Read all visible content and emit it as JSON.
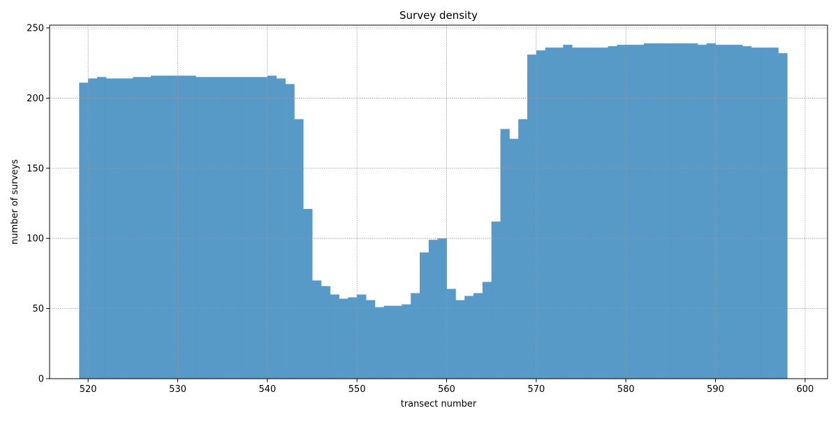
{
  "chart_data": {
    "type": "bar",
    "title": "Survey density",
    "xlabel": "transect number",
    "ylabel": "number of surveys",
    "xlim": [
      515.7,
      602.5
    ],
    "ylim": [
      0,
      252
    ],
    "xticks": [
      520,
      530,
      540,
      550,
      560,
      570,
      580,
      590,
      600
    ],
    "yticks": [
      0,
      50,
      100,
      150,
      200,
      250
    ],
    "grid": true,
    "bar_color": "#5799c7",
    "grid_color": "#999999",
    "bin_width": 1,
    "x": [
      519.5,
      520.5,
      521.5,
      522.5,
      523.5,
      524.5,
      525.5,
      526.5,
      527.5,
      528.5,
      529.5,
      530.5,
      531.5,
      532.5,
      533.5,
      534.5,
      535.5,
      536.5,
      537.5,
      538.5,
      539.5,
      540.5,
      541.5,
      542.5,
      543.5,
      544.5,
      545.5,
      546.5,
      547.5,
      548.5,
      549.5,
      550.5,
      551.5,
      552.5,
      553.5,
      554.5,
      555.5,
      556.5,
      557.5,
      558.5,
      559.5,
      560.5,
      561.5,
      562.5,
      563.5,
      564.5,
      565.5,
      566.5,
      567.5,
      568.5,
      569.5,
      570.5,
      571.5,
      572.5,
      573.5,
      574.5,
      575.5,
      576.5,
      577.5,
      578.5,
      579.5,
      580.5,
      581.5,
      582.5,
      583.5,
      584.5,
      585.5,
      586.5,
      587.5,
      588.5,
      589.5,
      590.5,
      591.5,
      592.5,
      593.5,
      594.5,
      595.5,
      596.5,
      597.5
    ],
    "values": [
      211,
      214,
      215,
      214,
      214,
      214,
      215,
      215,
      216,
      216,
      216,
      216,
      216,
      215,
      215,
      215,
      215,
      215,
      215,
      215,
      215,
      216,
      214,
      210,
      185,
      121,
      70,
      66,
      60,
      57,
      58,
      60,
      56,
      51,
      52,
      52,
      53,
      61,
      90,
      99,
      100,
      64,
      56,
      59,
      61,
      69,
      112,
      178,
      171,
      185,
      231,
      234,
      236,
      236,
      238,
      236,
      236,
      236,
      236,
      237,
      238,
      238,
      238,
      239,
      239,
      239,
      239,
      239,
      239,
      238,
      239,
      238,
      238,
      238,
      237,
      236,
      236,
      236,
      232
    ]
  }
}
